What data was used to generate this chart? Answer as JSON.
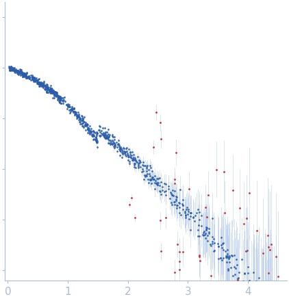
{
  "title": "",
  "xlabel": "",
  "ylabel": "",
  "xlim": [
    -0.05,
    4.65
  ],
  "ylim": [
    -4.2,
    1.3
  ],
  "dot_color_blue": "#2a5caa",
  "dot_color_red": "#cc2222",
  "error_bar_color": "#aec6e8",
  "background_color": "#ffffff",
  "axis_color": "#aabbd4",
  "tick_color": "#aabbd4",
  "tick_label_color": "#aabbd4",
  "xticks": [
    0,
    1,
    2,
    3,
    4
  ],
  "figsize": [
    4.22,
    4.37
  ],
  "dpi": 100,
  "dot_size": 4,
  "seed": 42
}
